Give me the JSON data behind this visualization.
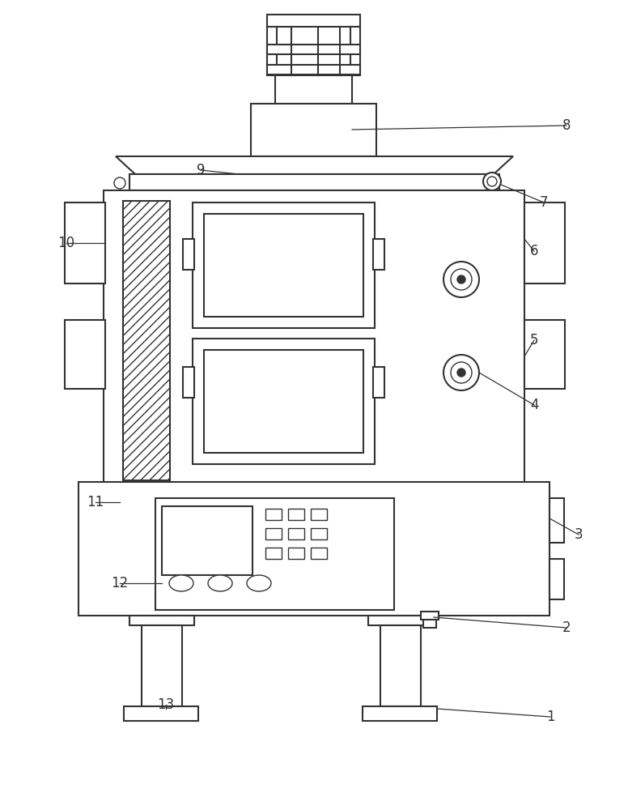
{
  "bg_color": "#ffffff",
  "line_color": "#333333",
  "lw": 1.5,
  "lw_thin": 1.0,
  "label_fontsize": 12
}
